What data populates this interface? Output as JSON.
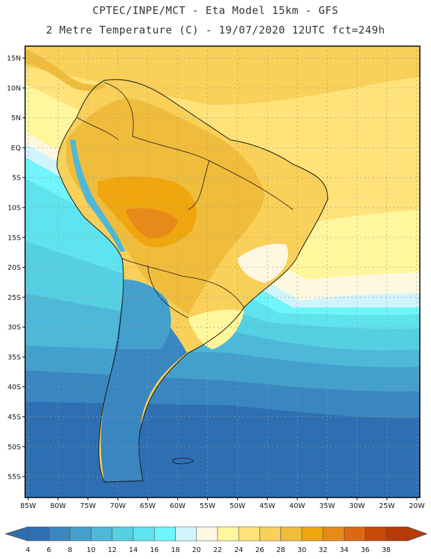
{
  "title_line1": "CPTEC/INPE/MCT -  Eta Model 15km - GFS",
  "title_line2": "2 Metre Temperature (C) - 19/07/2020 12UTC fct=249h",
  "lat_labels": [
    "15N",
    "10N",
    "5N",
    "EQ",
    "5S",
    "10S",
    "15S",
    "20S",
    "25S",
    "30S",
    "35S",
    "40S",
    "45S",
    "50S",
    "55S"
  ],
  "lat_values": [
    15,
    10,
    5,
    0,
    -5,
    -10,
    -15,
    -20,
    -25,
    -30,
    -35,
    -40,
    -45,
    -50,
    -55
  ],
  "lon_labels": [
    "85W",
    "80W",
    "75W",
    "70W",
    "65W",
    "60W",
    "55W",
    "50W",
    "45W",
    "40W",
    "35W",
    "30W",
    "25W",
    "20W"
  ],
  "lon_values": [
    -85,
    -80,
    -75,
    -70,
    -65,
    -60,
    -55,
    -50,
    -45,
    -40,
    -35,
    -30,
    -25,
    -20
  ],
  "extent": {
    "lon_min": -85.5,
    "lon_max": -19.5,
    "lat_min": -58.5,
    "lat_max": 17
  },
  "colorbar": {
    "labels": [
      "4",
      "6",
      "8",
      "10",
      "12",
      "14",
      "16",
      "18",
      "20",
      "22",
      "24",
      "26",
      "28",
      "30",
      "32",
      "34",
      "36",
      "38"
    ],
    "colors": [
      "#2e6fb2",
      "#3a86c0",
      "#43a0cc",
      "#4db8d8",
      "#55cfe2",
      "#5fe3ee",
      "#6ff5fb",
      "#cff4fd",
      "#fff8e0",
      "#fff79e",
      "#ffe37a",
      "#f8d05a",
      "#f0bc3c",
      "#f0a60f",
      "#e88a1a",
      "#de6810",
      "#c84908",
      "#b83a06"
    ]
  }
}
